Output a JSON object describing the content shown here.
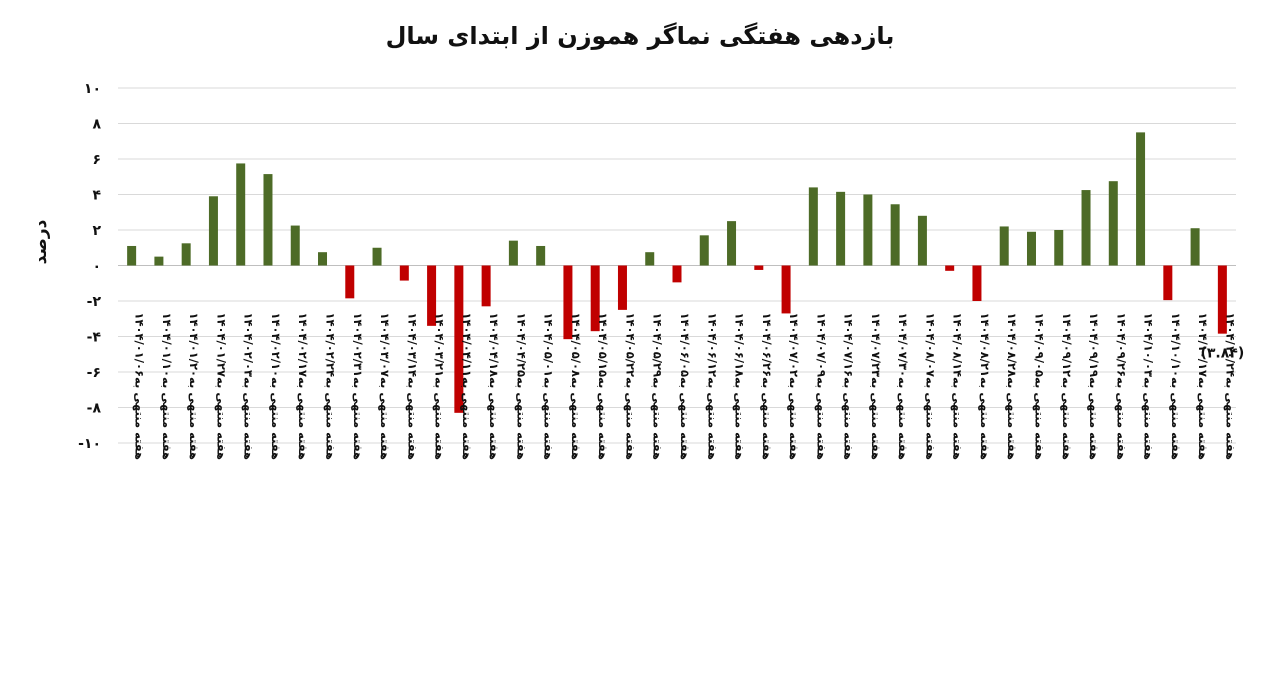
{
  "chart_data": {
    "type": "bar",
    "title": "بازدهی هفتگی نماگر هموزن از ابتدای سال",
    "ylabel": "درصد",
    "xlabel": "",
    "ylim": [
      -10,
      10
    ],
    "yticks": [
      10,
      8,
      6,
      4,
      2,
      0,
      -2,
      -4,
      -6,
      -8,
      -10
    ],
    "ytick_labels": [
      "۱۰",
      "۸",
      "۶",
      "۴",
      "۲",
      "۰",
      "-۲",
      "-۴",
      "-۶",
      "-۸",
      "-۱۰"
    ],
    "grid": true,
    "positive_color": "#4d6b27",
    "negative_color": "#c00000",
    "categories": [
      "هفته منتهی به۱۴۰۴/۰۱/۰۶",
      "هفته منتهی به۱۴۰۴/۰۱/۱۰",
      "هفته منتهی به۱۴۰۴/۰۱/۲۰",
      "هفته منتهی به۱۴۰۴/۰۱/۲۷",
      "هفته منتهی به۱۴۰۴/۰۲/۰۳",
      "هفته منتهی به۱۴۰۴/۰۲/۱۰",
      "هفته منتهی به۱۴۰۴/۰۲/۱۷",
      "هفته منتهی به۱۴۰۴/۰۲/۲۴",
      "هفته منتهی به۱۴۰۴/۰۲/۳۱",
      "هفته منتهی به۱۴۰۴/۰۳/۰۷",
      "هفته منتهی به۱۴۰۴/۰۳/۱۴",
      "هفته منتهی به۱۴۰۴/۰۳/۲۱",
      "هفته منتهی به۱۴۰۴/۰۴/۱۱",
      "هفته منتهی به۱۴۰۴/۰۴/۱۸",
      "هفته منتهی به۱۴۰۴/۰۴/۲۵",
      "هفته منتهی به۱۴۰۴/۰۵/۰۱",
      "هفته منتهی به۱۴۰۴/۰۵/۰۸",
      "هفته منتهی به۱۴۰۴/۰۵/۱۵",
      "هفته منتهی به۱۴۰۴/۰۵/۲۲",
      "هفته منتهی به۱۴۰۴/۰۵/۲۹",
      "هفته منتهی به۱۴۰۴/۰۶/۰۵",
      "هفته منتهی به۱۴۰۴/۰۶/۱۲",
      "هفته منتهی به۱۴۰۴/۰۶/۱۸",
      "هفته منتهی به۱۴۰۴/۰۶/۲۶",
      "هفته منتهی به۱۴۰۴/۰۷/۰۲",
      "هفته منتهی به۱۴۰۴/۰۷/۰۹",
      "هفته منتهی به۱۴۰۴/۰۷/۱۶",
      "هفته منتهی به۱۴۰۴/۰۷/۲۳",
      "هفته منتهی به۱۴۰۴/۰۷/۳۰",
      "هفته منتهی به۱۴۰۴/۰۸/۰۷",
      "هفته منتهی به۱۴۰۴/۰۸/۱۴",
      "هفته منتهی به۱۴۰۴/۰۸/۲۱",
      "هفته منتهی به۱۴۰۴/۰۸/۲۸",
      "هفته منتهی به۱۴۰۴/۰۹/۰۵",
      "هفته منتهی به۱۴۰۴/۰۹/۱۲",
      "هفته منتهی به۱۴۰۴/۰۹/۱۹",
      "هفته منتهی به۱۴۰۴/۰۹/۲۶",
      "هفته منتهی به۱۴۰۴/۱۰/۰۳",
      "هفته منتهی به۱۴۰۴/۱۰/۱۰",
      "هفته منتهی به۱۴۰۴/۱۰/۱۷",
      "هفته منتهی به۱۴۰۴/۱۰/۲۴"
    ],
    "values": [
      1.1,
      0.5,
      1.25,
      3.9,
      5.75,
      5.15,
      2.25,
      0.75,
      -1.85,
      1.0,
      -0.85,
      -3.4,
      -8.3,
      -2.3,
      1.4,
      1.1,
      -4.15,
      -3.7,
      -2.5,
      0.75,
      -0.95,
      1.7,
      2.5,
      -0.25,
      -2.7,
      4.4,
      4.15,
      4.0,
      3.45,
      2.8,
      -0.3,
      -2.0,
      2.2,
      1.9,
      2.0,
      4.25,
      4.75,
      7.5,
      -1.95,
      2.1,
      -3.84
    ],
    "data_labels": [
      {
        "index": 40,
        "text": "(۳.۸۴)"
      }
    ]
  }
}
